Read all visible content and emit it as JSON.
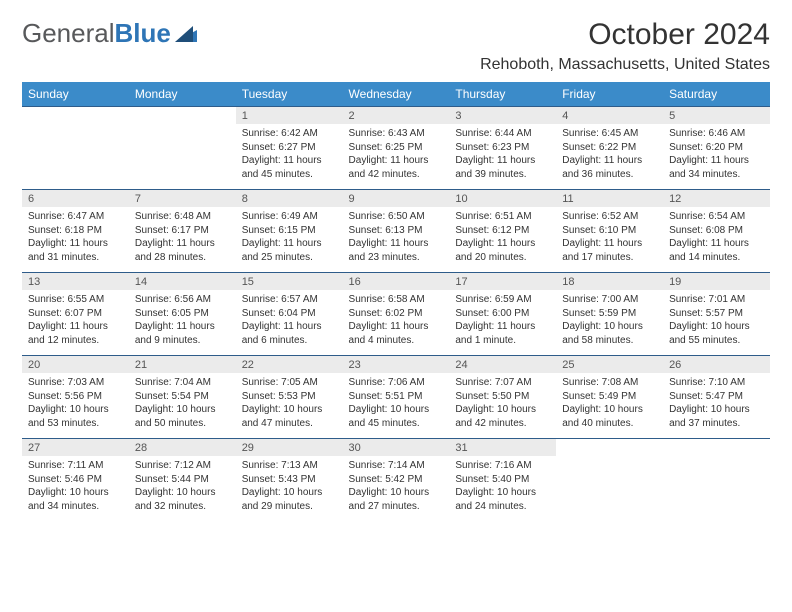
{
  "logo": {
    "part1": "General",
    "part2": "Blue"
  },
  "title": "October 2024",
  "location": "Rehoboth, Massachusetts, United States",
  "colors": {
    "header_bg": "#3b8bc9",
    "header_text": "#ffffff",
    "daynum_bg": "#ebebeb",
    "border": "#2e5c8a",
    "logo_gray": "#58595b",
    "logo_blue": "#2e75b6"
  },
  "day_names": [
    "Sunday",
    "Monday",
    "Tuesday",
    "Wednesday",
    "Thursday",
    "Friday",
    "Saturday"
  ],
  "weeks": [
    {
      "nums": [
        "",
        "",
        "1",
        "2",
        "3",
        "4",
        "5"
      ],
      "cells": [
        "",
        "",
        "Sunrise: 6:42 AM\nSunset: 6:27 PM\nDaylight: 11 hours and 45 minutes.",
        "Sunrise: 6:43 AM\nSunset: 6:25 PM\nDaylight: 11 hours and 42 minutes.",
        "Sunrise: 6:44 AM\nSunset: 6:23 PM\nDaylight: 11 hours and 39 minutes.",
        "Sunrise: 6:45 AM\nSunset: 6:22 PM\nDaylight: 11 hours and 36 minutes.",
        "Sunrise: 6:46 AM\nSunset: 6:20 PM\nDaylight: 11 hours and 34 minutes."
      ]
    },
    {
      "nums": [
        "6",
        "7",
        "8",
        "9",
        "10",
        "11",
        "12"
      ],
      "cells": [
        "Sunrise: 6:47 AM\nSunset: 6:18 PM\nDaylight: 11 hours and 31 minutes.",
        "Sunrise: 6:48 AM\nSunset: 6:17 PM\nDaylight: 11 hours and 28 minutes.",
        "Sunrise: 6:49 AM\nSunset: 6:15 PM\nDaylight: 11 hours and 25 minutes.",
        "Sunrise: 6:50 AM\nSunset: 6:13 PM\nDaylight: 11 hours and 23 minutes.",
        "Sunrise: 6:51 AM\nSunset: 6:12 PM\nDaylight: 11 hours and 20 minutes.",
        "Sunrise: 6:52 AM\nSunset: 6:10 PM\nDaylight: 11 hours and 17 minutes.",
        "Sunrise: 6:54 AM\nSunset: 6:08 PM\nDaylight: 11 hours and 14 minutes."
      ]
    },
    {
      "nums": [
        "13",
        "14",
        "15",
        "16",
        "17",
        "18",
        "19"
      ],
      "cells": [
        "Sunrise: 6:55 AM\nSunset: 6:07 PM\nDaylight: 11 hours and 12 minutes.",
        "Sunrise: 6:56 AM\nSunset: 6:05 PM\nDaylight: 11 hours and 9 minutes.",
        "Sunrise: 6:57 AM\nSunset: 6:04 PM\nDaylight: 11 hours and 6 minutes.",
        "Sunrise: 6:58 AM\nSunset: 6:02 PM\nDaylight: 11 hours and 4 minutes.",
        "Sunrise: 6:59 AM\nSunset: 6:00 PM\nDaylight: 11 hours and 1 minute.",
        "Sunrise: 7:00 AM\nSunset: 5:59 PM\nDaylight: 10 hours and 58 minutes.",
        "Sunrise: 7:01 AM\nSunset: 5:57 PM\nDaylight: 10 hours and 55 minutes."
      ]
    },
    {
      "nums": [
        "20",
        "21",
        "22",
        "23",
        "24",
        "25",
        "26"
      ],
      "cells": [
        "Sunrise: 7:03 AM\nSunset: 5:56 PM\nDaylight: 10 hours and 53 minutes.",
        "Sunrise: 7:04 AM\nSunset: 5:54 PM\nDaylight: 10 hours and 50 minutes.",
        "Sunrise: 7:05 AM\nSunset: 5:53 PM\nDaylight: 10 hours and 47 minutes.",
        "Sunrise: 7:06 AM\nSunset: 5:51 PM\nDaylight: 10 hours and 45 minutes.",
        "Sunrise: 7:07 AM\nSunset: 5:50 PM\nDaylight: 10 hours and 42 minutes.",
        "Sunrise: 7:08 AM\nSunset: 5:49 PM\nDaylight: 10 hours and 40 minutes.",
        "Sunrise: 7:10 AM\nSunset: 5:47 PM\nDaylight: 10 hours and 37 minutes."
      ]
    },
    {
      "nums": [
        "27",
        "28",
        "29",
        "30",
        "31",
        "",
        ""
      ],
      "cells": [
        "Sunrise: 7:11 AM\nSunset: 5:46 PM\nDaylight: 10 hours and 34 minutes.",
        "Sunrise: 7:12 AM\nSunset: 5:44 PM\nDaylight: 10 hours and 32 minutes.",
        "Sunrise: 7:13 AM\nSunset: 5:43 PM\nDaylight: 10 hours and 29 minutes.",
        "Sunrise: 7:14 AM\nSunset: 5:42 PM\nDaylight: 10 hours and 27 minutes.",
        "Sunrise: 7:16 AM\nSunset: 5:40 PM\nDaylight: 10 hours and 24 minutes.",
        "",
        ""
      ]
    }
  ]
}
